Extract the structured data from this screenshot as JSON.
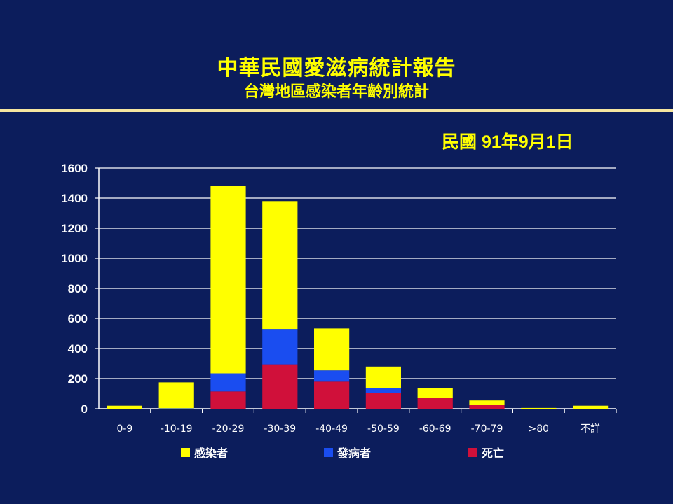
{
  "header": {
    "title": "中華民國愛滋病統計報告",
    "subtitle": "台灣地區感染者年齡別統計",
    "date": "民國 91年9月1日"
  },
  "colors": {
    "background": "#0c1d5c",
    "title": "#ffff00",
    "divider": "#f6e6a0",
    "infected": "#ffff00",
    "diseased": "#1a4df0",
    "death": "#d0103a"
  },
  "chart_data": {
    "type": "bar",
    "stacked": true,
    "categories": [
      "0-9",
      "-10-19",
      "-20-29",
      "-30-39",
      "-40-49",
      "-50-59",
      "-60-69",
      "-70-79",
      ">80",
      "不詳"
    ],
    "series": [
      {
        "name": "死亡",
        "color": "#d0103a",
        "values": [
          0,
          0,
          115,
          295,
          180,
          105,
          70,
          25,
          0,
          0
        ]
      },
      {
        "name": "發病者",
        "color": "#1a4df0",
        "values": [
          0,
          3,
          120,
          235,
          75,
          30,
          0,
          0,
          0,
          0
        ]
      },
      {
        "name": "感染者",
        "color": "#ffff00",
        "values": [
          20,
          172,
          1245,
          850,
          278,
          145,
          65,
          30,
          5,
          20
        ]
      }
    ],
    "legend_order": [
      "感染者",
      "發病者",
      "死亡"
    ],
    "yticks": [
      "0",
      "200",
      "400",
      "600",
      "800",
      "1000",
      "1200",
      "1400",
      "1600"
    ],
    "ylim": [
      0,
      1600
    ],
    "grid": true,
    "legend_position": "bottom"
  }
}
